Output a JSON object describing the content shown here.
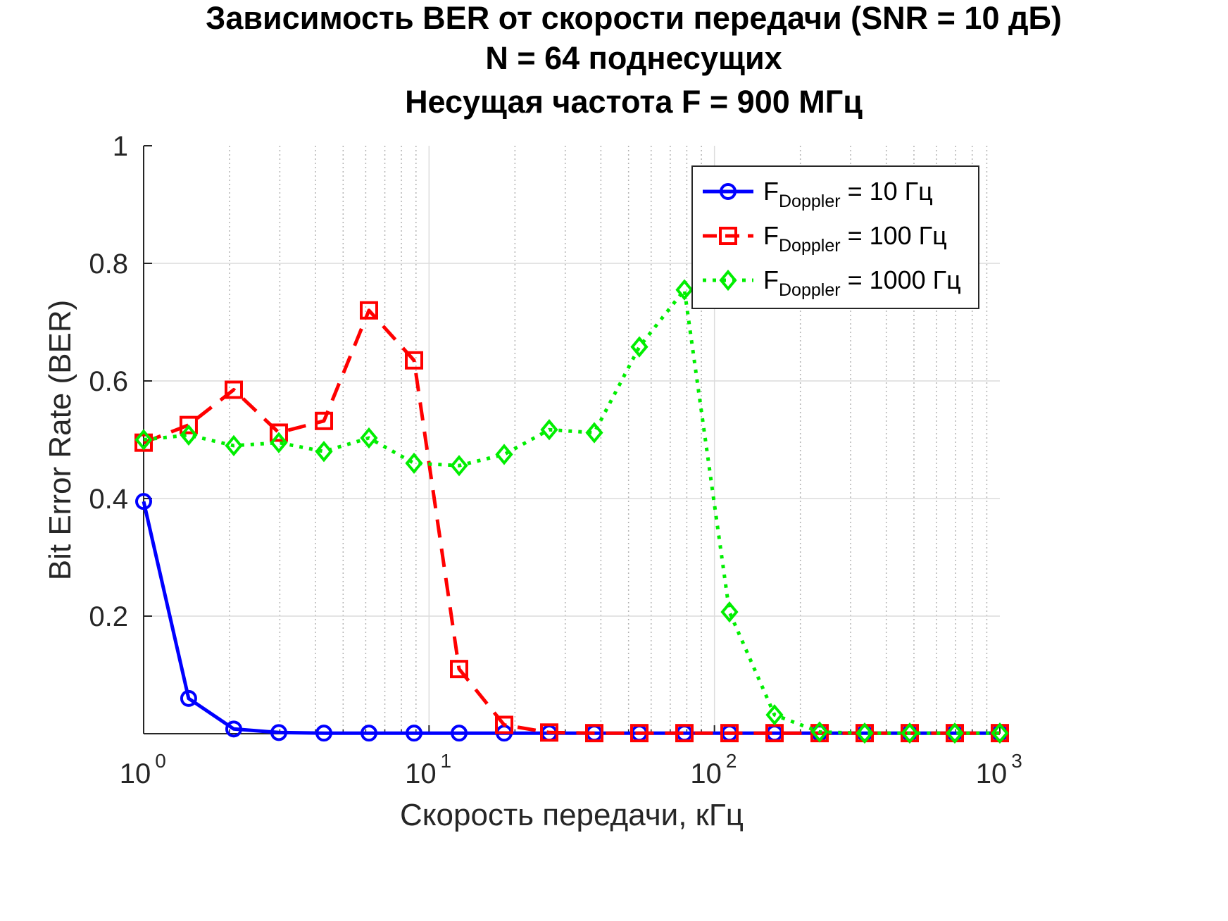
{
  "chart_data": {
    "type": "line",
    "title_lines": [
      "Зависимость BER от скорости передачи (SNR = 10 дБ)",
      "N = 64 поднесущих",
      "Несущая частота F = 900 МГц"
    ],
    "xlabel": "Скорость передачи, кГц",
    "ylabel": "Bit Error Rate (BER)",
    "xscale": "log",
    "xlim": [
      1,
      1000
    ],
    "ylim": [
      0,
      1
    ],
    "grid": true,
    "legend_position": "top-right",
    "y_ticks": [
      "0.2",
      "0.4",
      "0.6",
      "0.8",
      "1"
    ],
    "x_ticks": [
      {
        "base": "10",
        "exp": "0"
      },
      {
        "base": "10",
        "exp": "1"
      },
      {
        "base": "10",
        "exp": "2"
      },
      {
        "base": "10",
        "exp": "3"
      }
    ],
    "x": [
      1.0,
      1.438,
      2.069,
      2.976,
      4.281,
      6.158,
      8.859,
      12.743,
      18.33,
      26.367,
      37.927,
      54.556,
      78.476,
      112.884,
      162.378,
      233.572,
      335.982,
      483.293,
      695.193,
      1000.0
    ],
    "series": [
      {
        "name_base": "F",
        "name_sub": "Doppler",
        "name_rest": " = 10 Гц",
        "color": "#0000ff",
        "dash": "solid",
        "marker": "circle",
        "values": [
          0.395,
          0.06,
          0.008,
          0.002,
          0.001,
          0.001,
          0.001,
          0.001,
          0.001,
          0.001,
          0.001,
          0.001,
          0.001,
          0.001,
          0.001,
          0.001,
          0.001,
          0.001,
          0.001,
          0.001
        ]
      },
      {
        "name_base": "F",
        "name_sub": "Doppler",
        "name_rest": " = 100 Гц",
        "color": "#ff0000",
        "dash": "dashed",
        "marker": "square",
        "values": [
          0.495,
          0.525,
          0.585,
          0.512,
          0.532,
          0.72,
          0.635,
          0.11,
          0.015,
          0.002,
          0.001,
          0.001,
          0.001,
          0.001,
          0.001,
          0.001,
          0.001,
          0.001,
          0.001,
          0.001
        ]
      },
      {
        "name_base": "F",
        "name_sub": "Doppler",
        "name_rest": " = 1000 Гц",
        "color": "#00ee00",
        "dash": "dotted",
        "marker": "diamond",
        "values": [
          0.5,
          0.508,
          0.49,
          0.495,
          0.48,
          0.503,
          0.46,
          0.456,
          0.475,
          0.517,
          0.512,
          0.658,
          0.755,
          0.207,
          0.032,
          0.003,
          0.001,
          0.001,
          0.001,
          0.001
        ]
      }
    ]
  }
}
